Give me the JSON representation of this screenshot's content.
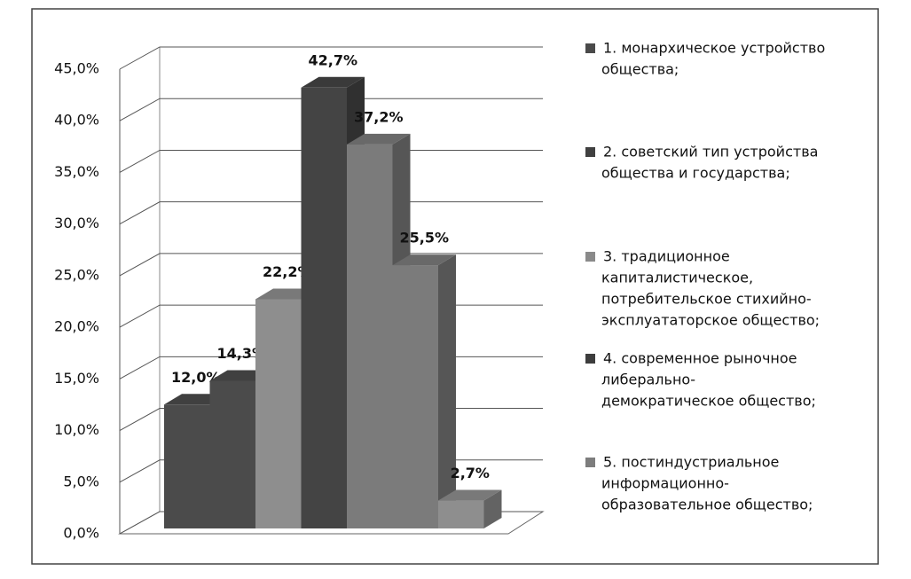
{
  "chart_data": {
    "type": "bar3d",
    "categories": [
      null,
      null,
      null,
      null,
      null,
      null,
      null
    ],
    "values": [
      12.0,
      14.3,
      22.2,
      42.7,
      37.2,
      25.5,
      2.7
    ],
    "value_labels": [
      "12,0%",
      "14,3%",
      "22,2%",
      "42,7%",
      "37,2%",
      "25,5%",
      "2,7%"
    ],
    "colors": [
      "#4b4b4b",
      "#4b4b4b",
      "#8e8e8e",
      "#444444",
      "#7b7b7b",
      "#7b7b7b",
      "#8e8e8e"
    ],
    "ylim": [
      0,
      45
    ],
    "yticks": [
      {
        "value": 0,
        "label": "0,0%"
      },
      {
        "value": 5,
        "label": "5,0%"
      },
      {
        "value": 10,
        "label": "10,0%"
      },
      {
        "value": 15,
        "label": "15,0%"
      },
      {
        "value": 20,
        "label": "20,0%"
      },
      {
        "value": 25,
        "label": "25,0%"
      },
      {
        "value": 30,
        "label": "30,0%"
      },
      {
        "value": 35,
        "label": "35,0%"
      },
      {
        "value": 40,
        "label": "40,0%"
      },
      {
        "value": 45,
        "label": "45,0%"
      }
    ],
    "grid": true,
    "legend": [
      {
        "color": "#4a4a4a",
        "lines": [
          "1. монархическое устройство",
          "общества;"
        ]
      },
      {
        "color": "#404040",
        "lines": [
          "2. советский тип устройства",
          "общества и государства;"
        ]
      },
      {
        "color": "#8a8a8a",
        "lines": [
          "3. традиционное",
          "капиталистическое,",
          "потребительское стихийно-",
          "эксплуататорское общество;"
        ]
      },
      {
        "color": "#3d3d3d",
        "lines": [
          "4. современное рыночное",
          "либерально-",
          "демократическое общество;"
        ]
      },
      {
        "color": "#7d7d7d",
        "lines": [
          "5. постиндустриальное",
          "информационно-",
          "образовательное общество;"
        ]
      }
    ]
  }
}
